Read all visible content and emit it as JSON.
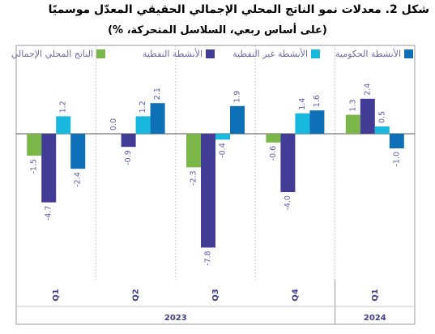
{
  "title": "شكل 2. معدلات نمو الناتج المحلي الإجمالي الحقيقي المعدّل موسميًا",
  "subtitle": "(على أساس ربعي، السلاسل المتحركة، %)",
  "chart_data": {
    "type": "bar",
    "categories": [
      "Q1",
      "Q2",
      "Q3",
      "Q4",
      "Q1"
    ],
    "year_groups": [
      {
        "label": "2023",
        "span": 4
      },
      {
        "label": "2024",
        "span": 1
      }
    ],
    "series": [
      {
        "name": "الناتج المحلي الإجمالي",
        "color": "#7AB648",
        "values": [
          -1.5,
          0.0,
          -2.3,
          -0.6,
          1.3
        ],
        "labels": [
          "-1.5",
          "0.0",
          "-2.3",
          "-0.6",
          "1.3"
        ]
      },
      {
        "name": "الأنشطة النفطية",
        "color": "#433C96",
        "values": [
          -4.7,
          -0.9,
          -7.8,
          -4.0,
          2.4
        ],
        "labels": [
          "-4.7",
          "-0.9",
          "-7.8",
          "-4.0",
          "2.4"
        ]
      },
      {
        "name": "الأنشطة غير النفطية",
        "color": "#18B8DF",
        "values": [
          1.2,
          1.2,
          -0.4,
          1.4,
          0.5
        ],
        "labels": [
          "1.2",
          "1.2",
          "-0.4",
          "1.4",
          "0.5"
        ]
      },
      {
        "name": "الأنشطة الحكومية",
        "color": "#0E71B8",
        "values": [
          -2.4,
          2.1,
          1.9,
          1.6,
          -1.0
        ],
        "labels": [
          "-2.4",
          "2.1",
          "1.9",
          "1.6",
          "-1.0"
        ]
      }
    ],
    "legend_position": "top",
    "ylim": [
      -9.2,
      5.2
    ],
    "grid": false,
    "label_color": "#5A5AAE"
  }
}
